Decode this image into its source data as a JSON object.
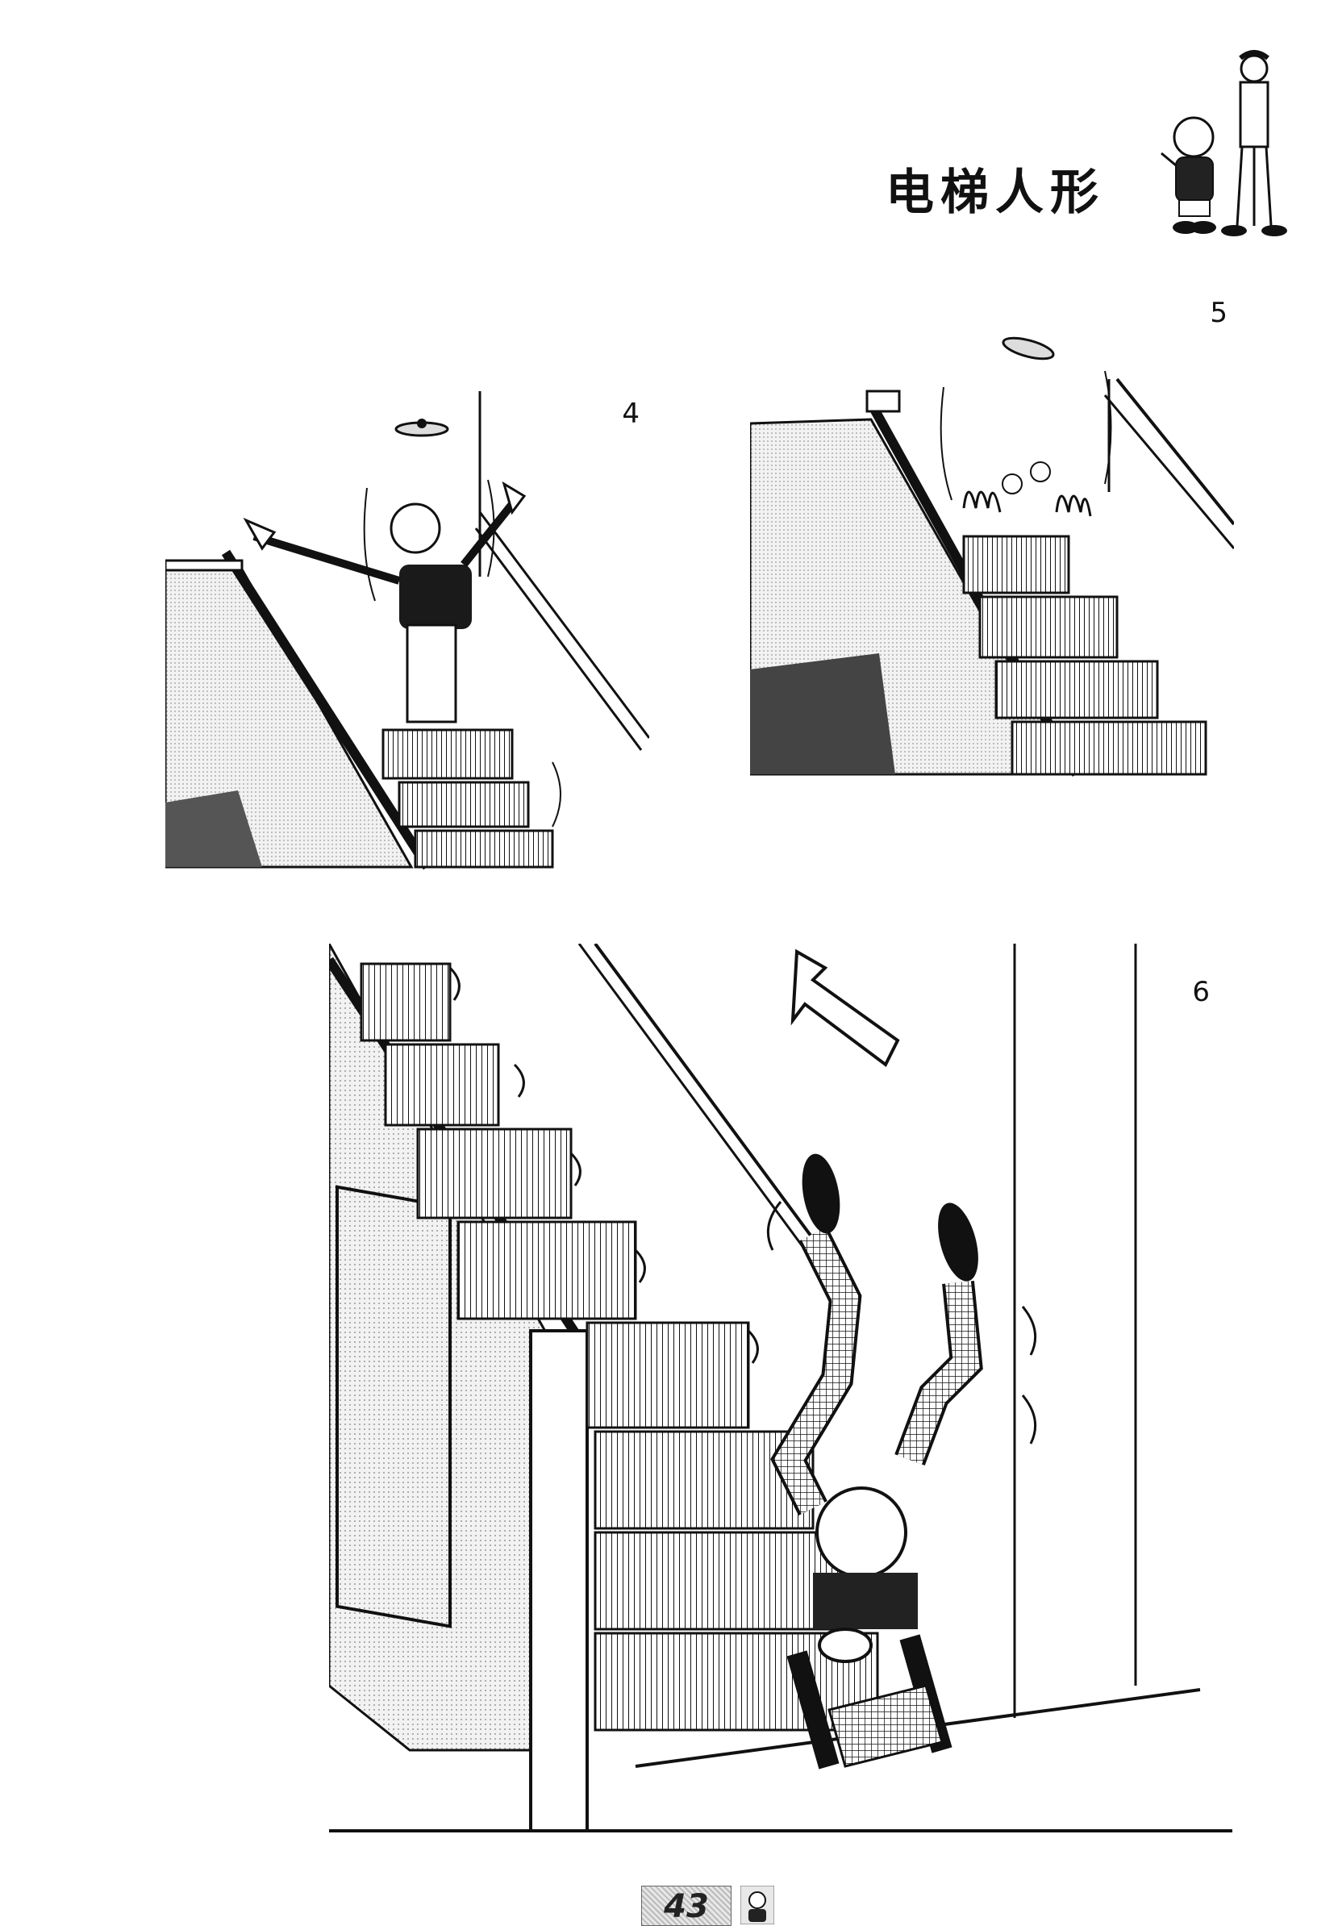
{
  "header": {
    "title": "电梯人形"
  },
  "panels": [
    {
      "number": "4",
      "mascot": "man-on-escalator"
    },
    {
      "number": "5",
      "mascot": "hands-on-escalator"
    },
    {
      "number": "6",
      "mascot": "man-upside-down-on-escalator"
    }
  ],
  "footer": {
    "page_number": "43"
  }
}
